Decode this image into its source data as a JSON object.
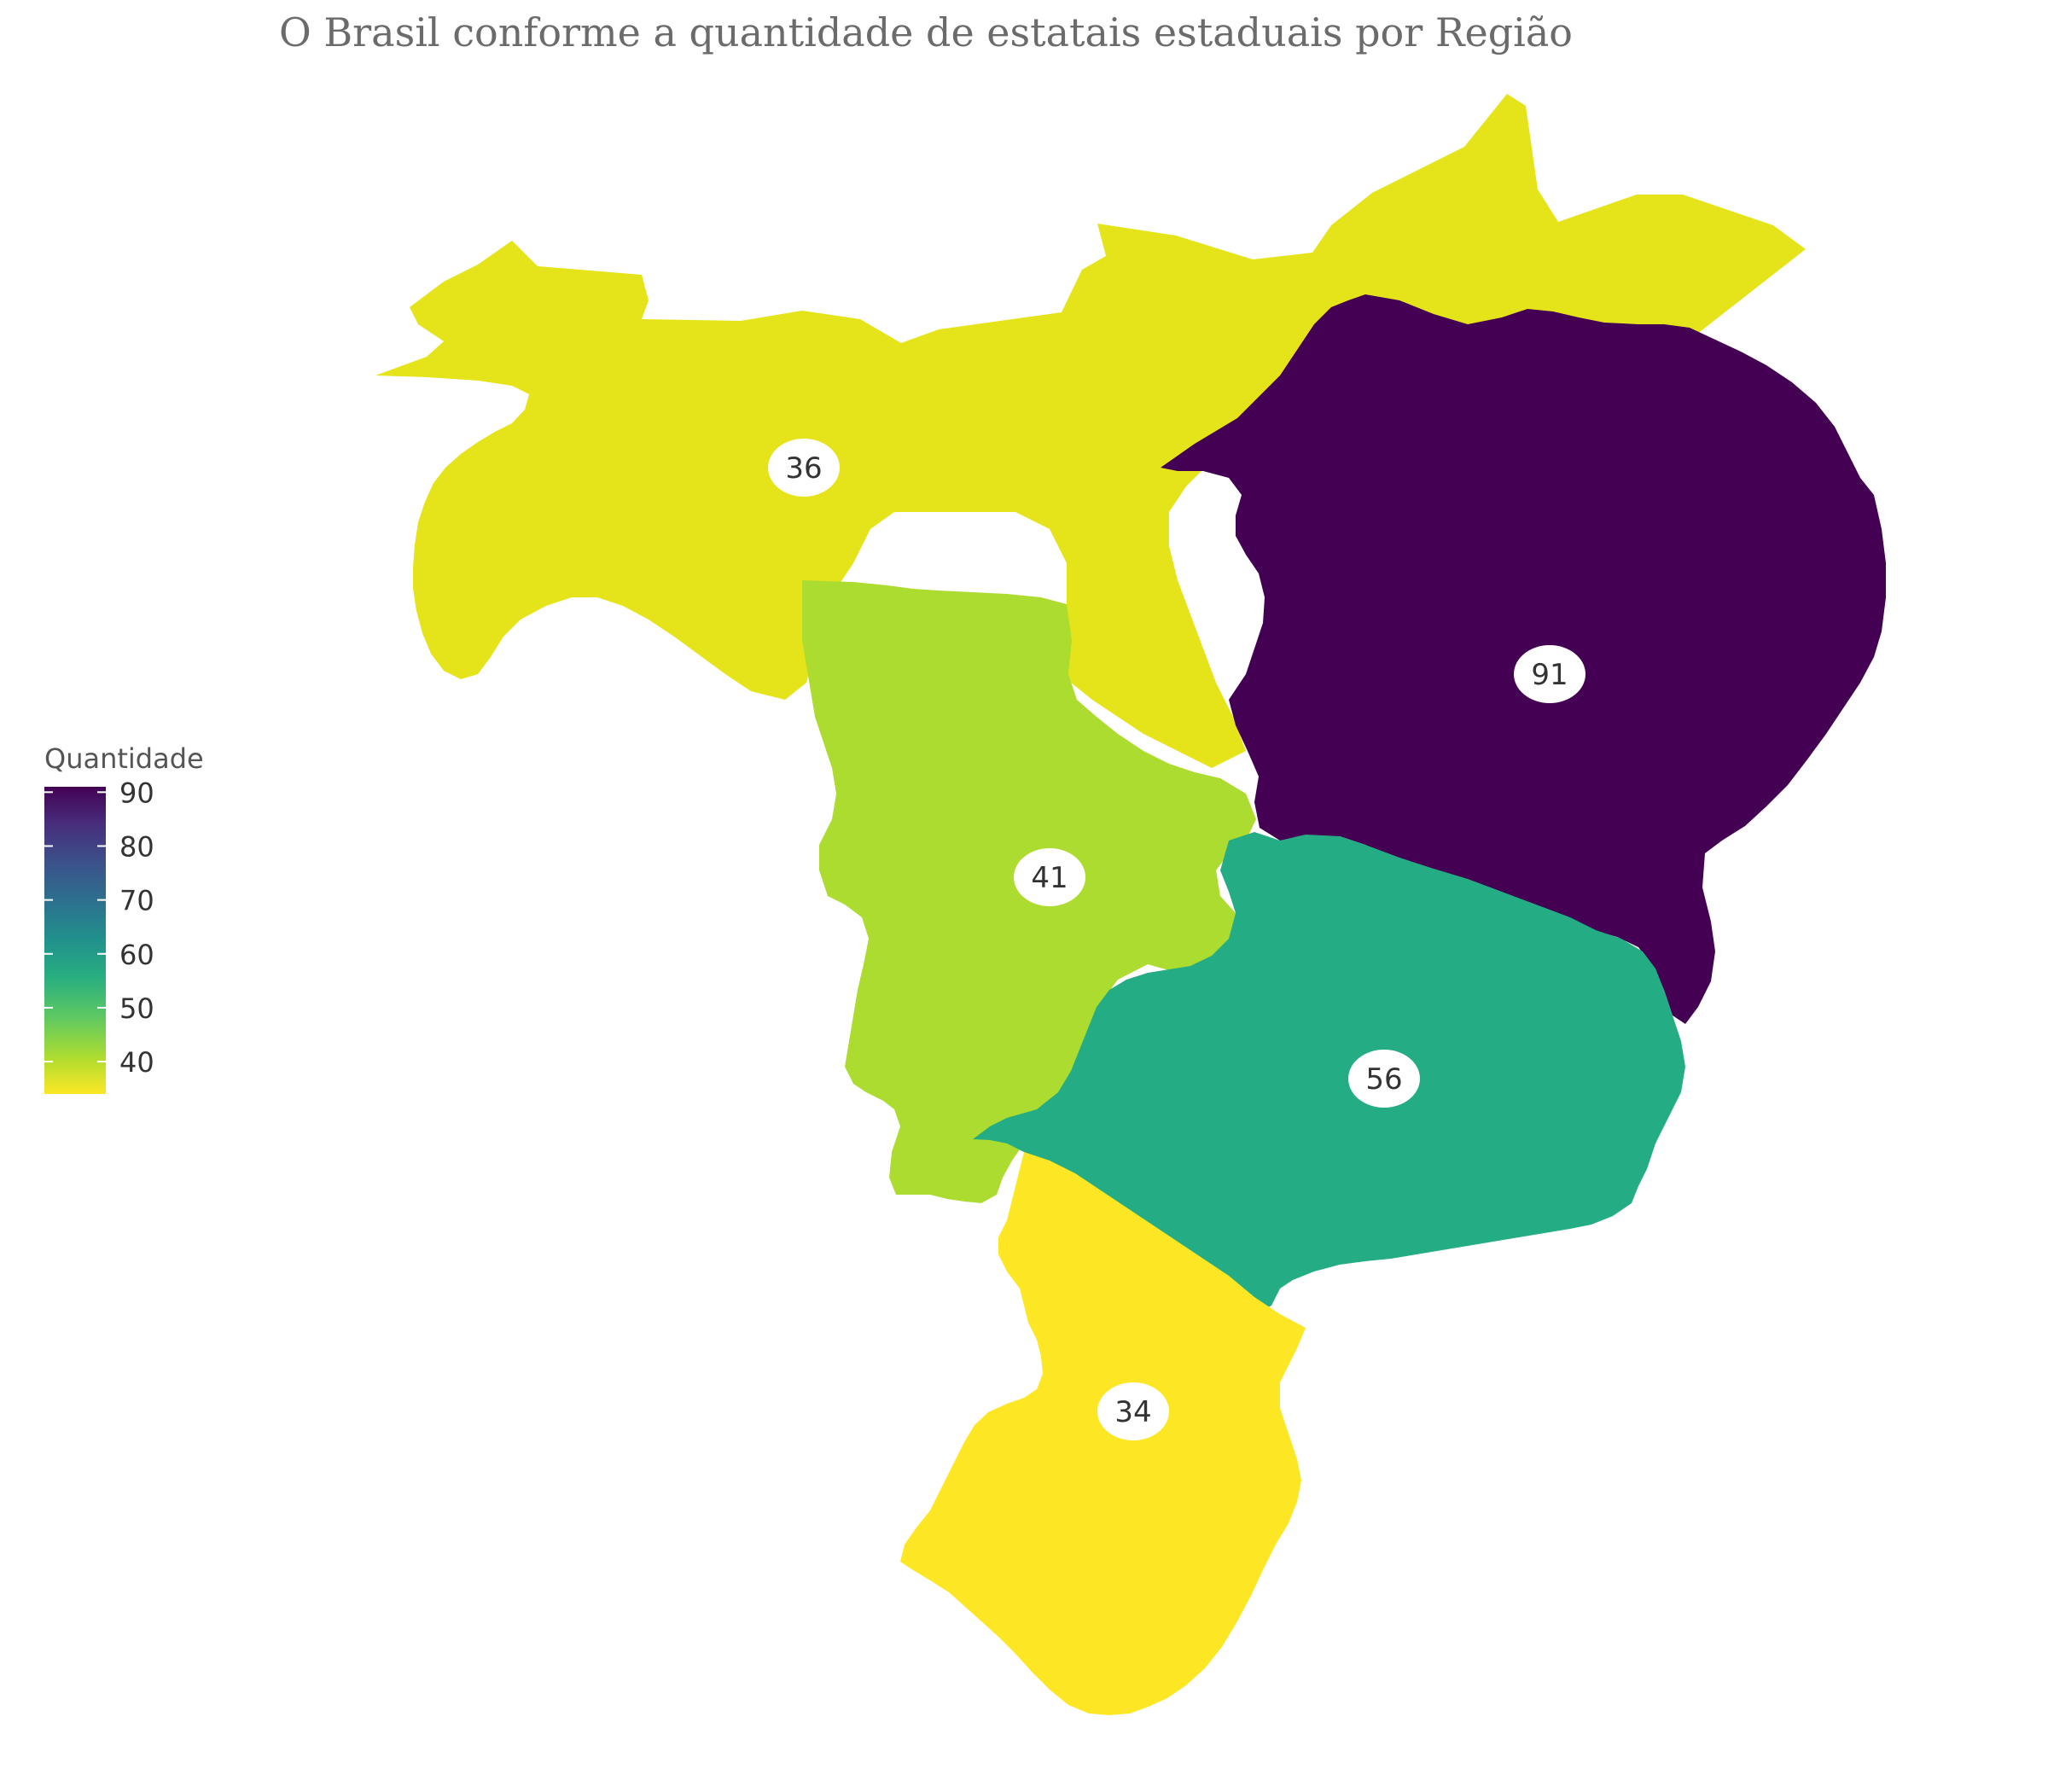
{
  "chart_data": {
    "type": "choropleth",
    "title": "O Brasil conforme a quantidade de estatais estaduais por Região",
    "legend": {
      "title": "Quantidade",
      "ticks": [
        90,
        80,
        70,
        60,
        50,
        40
      ],
      "range": [
        34,
        91
      ],
      "colorscale": "viridis (reversed)",
      "placement": "left"
    },
    "regions": [
      {
        "id": "norte",
        "value": 36,
        "color": "#e5e41a"
      },
      {
        "id": "nordeste",
        "value": 91,
        "color": "#440154"
      },
      {
        "id": "centro-oeste",
        "value": 41,
        "color": "#addc30"
      },
      {
        "id": "sudeste",
        "value": 56,
        "color": "#24ad84"
      },
      {
        "id": "sul",
        "value": 34,
        "color": "#fde725"
      }
    ]
  }
}
